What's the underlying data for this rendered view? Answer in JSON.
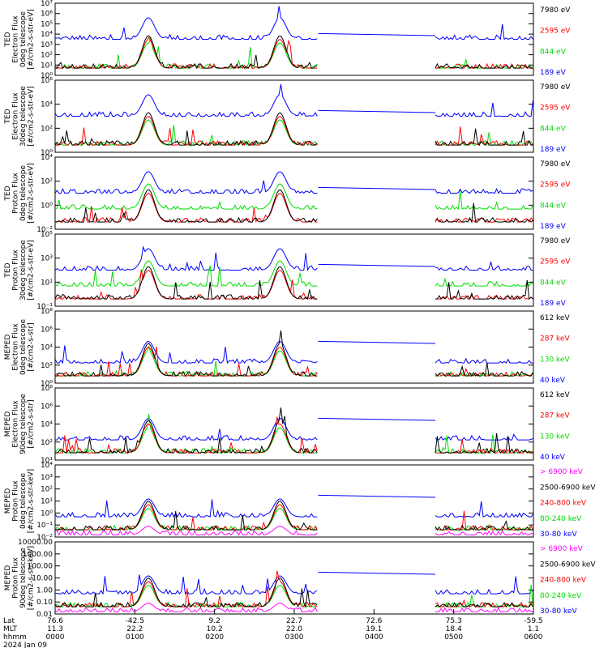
{
  "chart_data": {
    "type": "line",
    "grid": false,
    "legend_placement": "right",
    "x_axis": {
      "row_labels": [
        "Lat",
        "MLT",
        "hhmm",
        "2024 Jan 09"
      ],
      "lat": [
        "76.6",
        "-42.5",
        "9.2",
        "22.7",
        "72.6",
        "75.3",
        "-59.5"
      ],
      "mlt": [
        "11.3",
        "22.2",
        "10.2",
        "22.0",
        "19.1",
        "18.4",
        "1.1"
      ],
      "hhmm": [
        "0000",
        "0100",
        "0200",
        "0300",
        "0400",
        "0500",
        "0600"
      ]
    },
    "panels": [
      {
        "id": "ted-e-0deg",
        "ylabel": [
          "TED",
          "Electron Flux",
          "0deg telescope",
          "[#/cm2-s-str-eV]"
        ],
        "yticks": [
          "10⁰",
          "10¹",
          "10²",
          "10³",
          "10⁴",
          "10⁵",
          "10⁶",
          "10⁷"
        ],
        "ylim": [
          1,
          10000000
        ],
        "yscale": "log",
        "series": [
          {
            "name": "7980 eV",
            "color": "#000000",
            "level": "low"
          },
          {
            "name": "2595 eV",
            "color": "#ff0000",
            "level": "low"
          },
          {
            "name": "844 eV",
            "color": "#00dd00",
            "level": "low"
          },
          {
            "name": "189 eV",
            "color": "#0000ff",
            "level": "high"
          }
        ]
      },
      {
        "id": "ted-e-30deg",
        "ylabel": [
          "TED",
          "Electron Flux",
          "30deg telescope",
          "[#/cm2-s-str-eV]"
        ],
        "yticks": [
          "10⁰",
          "10²",
          "10⁴",
          "10⁶"
        ],
        "ylim": [
          1,
          10000000
        ],
        "yscale": "log",
        "series": [
          {
            "name": "7980 eV",
            "color": "#000000",
            "level": "low"
          },
          {
            "name": "2595 eV",
            "color": "#ff0000",
            "level": "low"
          },
          {
            "name": "844 eV",
            "color": "#00dd00",
            "level": "low"
          },
          {
            "name": "189 eV",
            "color": "#0000ff",
            "level": "high"
          }
        ]
      },
      {
        "id": "ted-p-0deg",
        "ylabel": [
          "TED",
          "Proton Flux",
          "0deg telescope",
          "[#/cm2-s-str-eV]"
        ],
        "yticks": [
          "10⁻²",
          "10⁰",
          "10²",
          "10⁴"
        ],
        "ylim": [
          0.01,
          100000
        ],
        "yscale": "log",
        "series": [
          {
            "name": "7980 eV",
            "color": "#000000",
            "level": "low"
          },
          {
            "name": "2595 eV",
            "color": "#ff0000",
            "level": "low"
          },
          {
            "name": "844 eV",
            "color": "#00dd00",
            "level": "mid"
          },
          {
            "name": "189 eV",
            "color": "#0000ff",
            "level": "high"
          }
        ]
      },
      {
        "id": "ted-p-30deg",
        "ylabel": [
          "TED",
          "Proton Flux",
          "30deg telescope",
          "[#/cm2-s-str-eV]"
        ],
        "yticks": [
          "10⁻¹",
          "10¹",
          "10³",
          "10⁵"
        ],
        "ylim": [
          0.1,
          100000
        ],
        "yscale": "log",
        "series": [
          {
            "name": "7980 eV",
            "color": "#000000",
            "level": "low"
          },
          {
            "name": "2595 eV",
            "color": "#ff0000",
            "level": "low"
          },
          {
            "name": "844 eV",
            "color": "#00dd00",
            "level": "mid"
          },
          {
            "name": "189 eV",
            "color": "#0000ff",
            "level": "high"
          }
        ]
      },
      {
        "id": "meped-e-0deg",
        "ylabel": [
          "MEPED",
          "Electron Flux",
          "0deg telescope",
          "[#/cm2-s-str]"
        ],
        "yticks": [
          "10⁰",
          "10²",
          "10⁴",
          "10⁶",
          "10⁸"
        ],
        "ylim": [
          1,
          100000000
        ],
        "yscale": "log",
        "series": [
          {
            "name": "612 keV",
            "color": "#000000",
            "level": "low"
          },
          {
            "name": "287 keV",
            "color": "#ff0000",
            "level": "low"
          },
          {
            "name": "130 keV",
            "color": "#00dd00",
            "level": "low"
          },
          {
            "name": "40 keV",
            "color": "#0000ff",
            "level": "mid"
          }
        ]
      },
      {
        "id": "meped-e-90deg",
        "ylabel": [
          "MEPED",
          "Electron Flux",
          "90deg telescope",
          "[#/cm2-s-str]"
        ],
        "yticks": [
          "10¹",
          "10²",
          "10⁴",
          "10⁶",
          "10⁸"
        ],
        "ylim": [
          10,
          100000000
        ],
        "yscale": "log",
        "series": [
          {
            "name": "612 keV",
            "color": "#000000",
            "level": "low"
          },
          {
            "name": "287 keV",
            "color": "#ff0000",
            "level": "low"
          },
          {
            "name": "130 keV",
            "color": "#00dd00",
            "level": "low"
          },
          {
            "name": "40 keV",
            "color": "#0000ff",
            "level": "mid"
          }
        ]
      },
      {
        "id": "meped-p-0deg",
        "ylabel": [
          "MEPED",
          "Proton Flux",
          "0deg telescope",
          "[#/cm2-s-str-keV]"
        ],
        "yticks": [
          "10⁻²",
          "10⁻¹",
          "10⁰",
          "10¹",
          "10²",
          "10³",
          "10⁴"
        ],
        "ylim": [
          0.01,
          10000
        ],
        "yscale": "log",
        "series": [
          {
            "name": "> 6900 keV",
            "color": "#ff00ff",
            "level": "floor"
          },
          {
            "name": "2500-6900 keV",
            "color": "#000000",
            "level": "low"
          },
          {
            "name": "240-800 keV",
            "color": "#ff0000",
            "level": "low"
          },
          {
            "name": "80-240 keV",
            "color": "#00dd00",
            "level": "low"
          },
          {
            "name": "30-80 keV",
            "color": "#0000ff",
            "level": "mid"
          }
        ]
      },
      {
        "id": "meped-p-90deg",
        "ylabel": [
          "MEPED",
          "Proton Flux",
          "90deg telescope",
          "[#/cm2-s-str-keV]"
        ],
        "yticks": [
          "0.01",
          "0.10",
          "1.00",
          "10.00",
          "100.00",
          "1000.00",
          "10000.00"
        ],
        "ylim": [
          0.01,
          10000
        ],
        "yscale": "log",
        "series": [
          {
            "name": "> 6900 keV",
            "color": "#ff00ff",
            "level": "floor"
          },
          {
            "name": "2500-6900 keV",
            "color": "#000000",
            "level": "low"
          },
          {
            "name": "240-800 keV",
            "color": "#ff0000",
            "level": "low"
          },
          {
            "name": "80-240 keV",
            "color": "#00dd00",
            "level": "low"
          },
          {
            "name": "30-80 keV",
            "color": "#0000ff",
            "level": "mid"
          }
        ]
      }
    ]
  }
}
